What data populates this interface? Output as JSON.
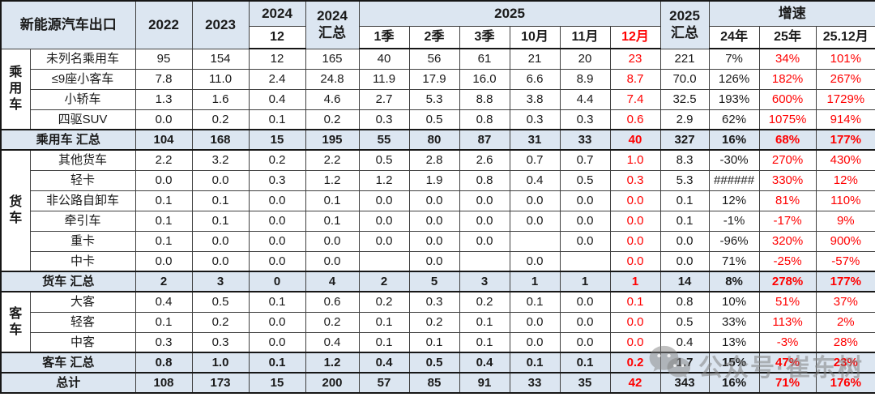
{
  "title": "新能源汽车出口",
  "colors": {
    "header_blue": "#DCE6F1",
    "red": "#FF0000"
  },
  "header": {
    "y2022": "2022",
    "y2023": "2023",
    "y2024": "2024",
    "y2024_sub": "12",
    "y2024_total_l1": "2024",
    "y2024_total_l2": "汇总",
    "y2025": "2025",
    "months": [
      "1季",
      "2季",
      "3季",
      "10月",
      "11月",
      "12月"
    ],
    "y2025_total_l1": "2025",
    "y2025_total_l2": "汇总",
    "growth": "增速",
    "growth_cols": [
      "24年",
      "25年",
      "25.12月"
    ]
  },
  "watermark": {
    "text": "公众号·崔东树"
  },
  "chart_data": {
    "type": "table",
    "title": "新能源汽车出口",
    "columns": [
      "2022",
      "2023",
      "2024-12",
      "2024汇总",
      "2025-1季",
      "2025-2季",
      "2025-3季",
      "2025-10月",
      "2025-11月",
      "2025-12月",
      "2025汇总",
      "增速24年",
      "增速25年",
      "增速25.12月"
    ],
    "rows": [
      {
        "type": "data",
        "group": "乘用车",
        "group_span": 4,
        "label": "未列名乘用车",
        "values": [
          "95",
          "154",
          "12",
          "165",
          "40",
          "56",
          "61",
          "21",
          "20",
          "23",
          "221",
          "7%",
          "34%",
          "101%"
        ]
      },
      {
        "type": "data",
        "label": "≤9座小客车",
        "values": [
          "7.8",
          "11.0",
          "2.4",
          "24.8",
          "11.9",
          "17.9",
          "16.0",
          "6.6",
          "8.9",
          "8.7",
          "70.0",
          "126%",
          "182%",
          "267%"
        ]
      },
      {
        "type": "data",
        "label": "小轿车",
        "values": [
          "1.3",
          "1.6",
          "0.4",
          "4.6",
          "2.7",
          "5.3",
          "8.8",
          "3.8",
          "4.4",
          "7.4",
          "32.5",
          "193%",
          "600%",
          "1729%"
        ]
      },
      {
        "type": "data",
        "label": "四驱SUV",
        "values": [
          "0.0",
          "0.2",
          "0.1",
          "0.2",
          "0.3",
          "0.5",
          "0.8",
          "0.3",
          "0.3",
          "0.6",
          "2.9",
          "62%",
          "1075%",
          "914%"
        ]
      },
      {
        "type": "subtotal",
        "label": "乘用车 汇总",
        "values": [
          "104",
          "168",
          "15",
          "195",
          "55",
          "80",
          "87",
          "31",
          "33",
          "40",
          "327",
          "16%",
          "68%",
          "177%"
        ]
      },
      {
        "type": "data",
        "group": "货车",
        "group_span": 6,
        "label": "其他货车",
        "values": [
          "2.2",
          "3.2",
          "0.2",
          "2.2",
          "0.5",
          "2.8",
          "2.6",
          "0.7",
          "0.7",
          "1.0",
          "8.3",
          "-30%",
          "270%",
          "430%"
        ]
      },
      {
        "type": "data",
        "label": "轻卡",
        "values": [
          "0.0",
          "0.0",
          "0.3",
          "1.2",
          "1.2",
          "1.9",
          "0.8",
          "0.4",
          "0.5",
          "0.3",
          "5.3",
          "######",
          "330%",
          "12%"
        ]
      },
      {
        "type": "data",
        "label": "非公路自卸车",
        "values": [
          "0.1",
          "0.1",
          "0.0",
          "0.1",
          "0.0",
          "0.0",
          "0.0",
          "0.0",
          "0.0",
          "0.0",
          "0.1",
          "12%",
          "81%",
          "110%"
        ]
      },
      {
        "type": "data",
        "label": "牵引车",
        "values": [
          "0.1",
          "0.1",
          "0.0",
          "0.1",
          "0.0",
          "0.0",
          "0.0",
          "0.0",
          "0.0",
          "0.0",
          "0.1",
          "-1%",
          "-17%",
          "9%"
        ]
      },
      {
        "type": "data",
        "label": "重卡",
        "values": [
          "0.1",
          "0.0",
          "0.0",
          "0.0",
          "0.0",
          "0.0",
          "0.0",
          "",
          "0.0",
          "0.0",
          "0.0",
          "-96%",
          "320%",
          "900%"
        ]
      },
      {
        "type": "data",
        "label": "中卡",
        "values": [
          "0.0",
          "0.0",
          "0.0",
          "0.0",
          "",
          "0.0",
          "",
          "0.0",
          "",
          "0.0",
          "0.0",
          "71%",
          "-25%",
          "-57%"
        ]
      },
      {
        "type": "subtotal",
        "label": "货车 汇总",
        "values": [
          "2",
          "3",
          "0",
          "4",
          "2",
          "5",
          "3",
          "1",
          "1",
          "1",
          "14",
          "8%",
          "278%",
          "177%"
        ]
      },
      {
        "type": "data",
        "group": "客车",
        "group_span": 3,
        "label": "大客",
        "values": [
          "0.4",
          "0.5",
          "0.1",
          "0.6",
          "0.2",
          "0.3",
          "0.2",
          "0.1",
          "0.0",
          "0.1",
          "0.8",
          "10%",
          "51%",
          "37%"
        ]
      },
      {
        "type": "data",
        "label": "轻客",
        "values": [
          "0.1",
          "0.2",
          "0.0",
          "0.2",
          "0.1",
          "0.2",
          "0.1",
          "0.0",
          "0.0",
          "0.0",
          "0.5",
          "33%",
          "113%",
          "2%"
        ]
      },
      {
        "type": "data",
        "label": "中客",
        "values": [
          "0.3",
          "0.3",
          "0.0",
          "0.4",
          "0.1",
          "0.1",
          "0.1",
          "0.0",
          "0.0",
          "0.0",
          "0.4",
          "13%",
          "-3%",
          "28%"
        ]
      },
      {
        "type": "subtotal",
        "label": "客车 汇总",
        "values": [
          "0.8",
          "1.0",
          "0.1",
          "1.2",
          "0.4",
          "0.5",
          "0.4",
          "0.1",
          "0.1",
          "0.2",
          "1.7",
          "15%",
          "47%",
          "23%"
        ]
      },
      {
        "type": "total",
        "label": "总计",
        "values": [
          "108",
          "173",
          "15",
          "200",
          "57",
          "85",
          "91",
          "33",
          "35",
          "42",
          "343",
          "16%",
          "71%",
          "176%"
        ]
      }
    ]
  }
}
